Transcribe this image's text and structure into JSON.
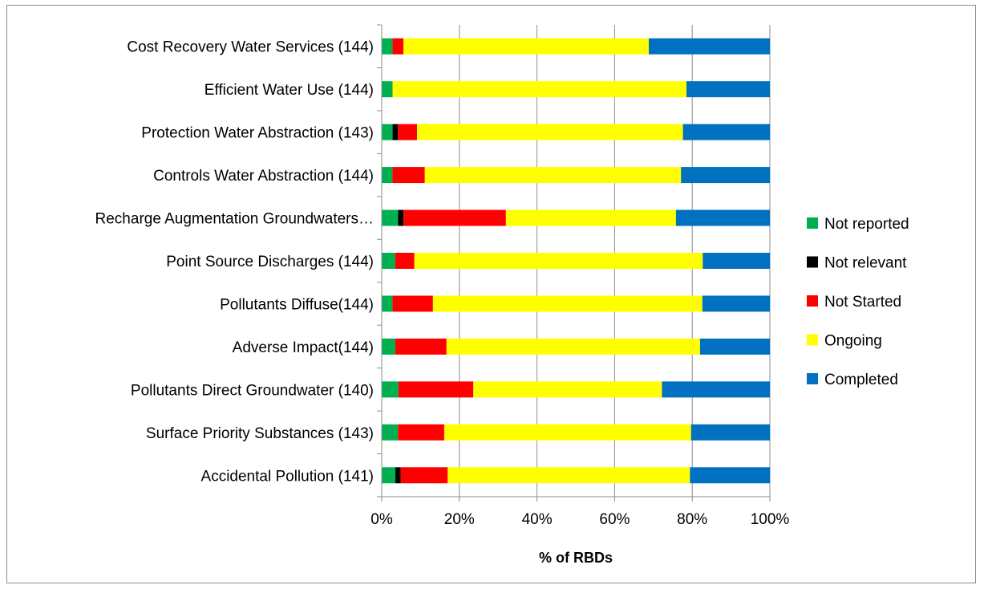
{
  "chart_data": {
    "type": "bar",
    "orientation": "horizontal",
    "stacked": "percent",
    "categories": [
      "Cost Recovery Water Services (144)",
      "Efficient Water Use (144)",
      "Protection Water Abstraction (143)",
      "Controls Water Abstraction (144)",
      "Recharge Augmentation Groundwaters…",
      "Point Source Discharges (144)",
      "Pollutants Diffuse(144)",
      "Adverse Impact(144)",
      "Pollutants Direct Groundwater (140)",
      "Surface Priority Substances (143)",
      "Accidental Pollution (141)"
    ],
    "series": [
      {
        "name": "Not reported",
        "color": "#00b050",
        "values": [
          2.8,
          2.8,
          2.8,
          2.8,
          4.2,
          3.5,
          2.8,
          3.5,
          4.3,
          4.2,
          3.5
        ]
      },
      {
        "name": "Not relevant",
        "color": "#000000",
        "values": [
          0,
          0,
          1.4,
          0,
          1.4,
          0,
          0,
          0,
          0,
          0,
          1.4
        ]
      },
      {
        "name": "Not Started",
        "color": "#ff0000",
        "values": [
          2.8,
          0,
          4.9,
          8.3,
          26.4,
          4.9,
          10.4,
          13.2,
          19.3,
          11.9,
          12.1
        ]
      },
      {
        "name": "Ongoing",
        "color": "#ffff00",
        "values": [
          63.2,
          75.7,
          68.5,
          66.0,
          43.8,
          74.3,
          69.4,
          65.3,
          48.6,
          63.6,
          62.4
        ]
      },
      {
        "name": "Completed",
        "color": "#0070c0",
        "values": [
          31.2,
          21.5,
          22.4,
          22.9,
          24.2,
          17.3,
          17.4,
          18.0,
          27.8,
          20.3,
          20.6
        ]
      }
    ],
    "x_ticks": [
      "0%",
      "20%",
      "40%",
      "60%",
      "80%",
      "100%"
    ],
    "xlim": [
      0,
      100
    ],
    "xlabel": "% of RBDs",
    "grid": "vertical",
    "legend": "right"
  }
}
